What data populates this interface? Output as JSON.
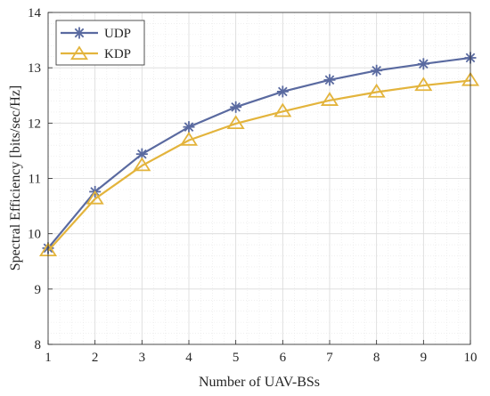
{
  "chart_data": {
    "type": "line",
    "title": "",
    "xlabel": "Number of UAV-BSs",
    "ylabel": "Spectral Efficiency [bits/sec/Hz]",
    "xlim": [
      1,
      10
    ],
    "ylim": [
      8,
      14
    ],
    "x": [
      1,
      2,
      3,
      4,
      5,
      6,
      7,
      8,
      9,
      10
    ],
    "xticks": [
      "1",
      "2",
      "3",
      "4",
      "5",
      "6",
      "7",
      "8",
      "9",
      "10"
    ],
    "yticks": [
      "8",
      "9",
      "10",
      "11",
      "12",
      "13",
      "14"
    ],
    "grid": true,
    "legend_position": "top-left",
    "series": [
      {
        "name": "UDP",
        "marker": "asterisk",
        "color": "#5a6aa0",
        "values": [
          9.74,
          10.76,
          11.44,
          11.93,
          12.29,
          12.57,
          12.78,
          12.95,
          13.07,
          13.18
        ]
      },
      {
        "name": "KDP",
        "marker": "triangle",
        "color": "#e3b43c",
        "values": [
          9.69,
          10.63,
          11.23,
          11.69,
          11.99,
          12.21,
          12.41,
          12.56,
          12.68,
          12.77
        ]
      }
    ]
  }
}
